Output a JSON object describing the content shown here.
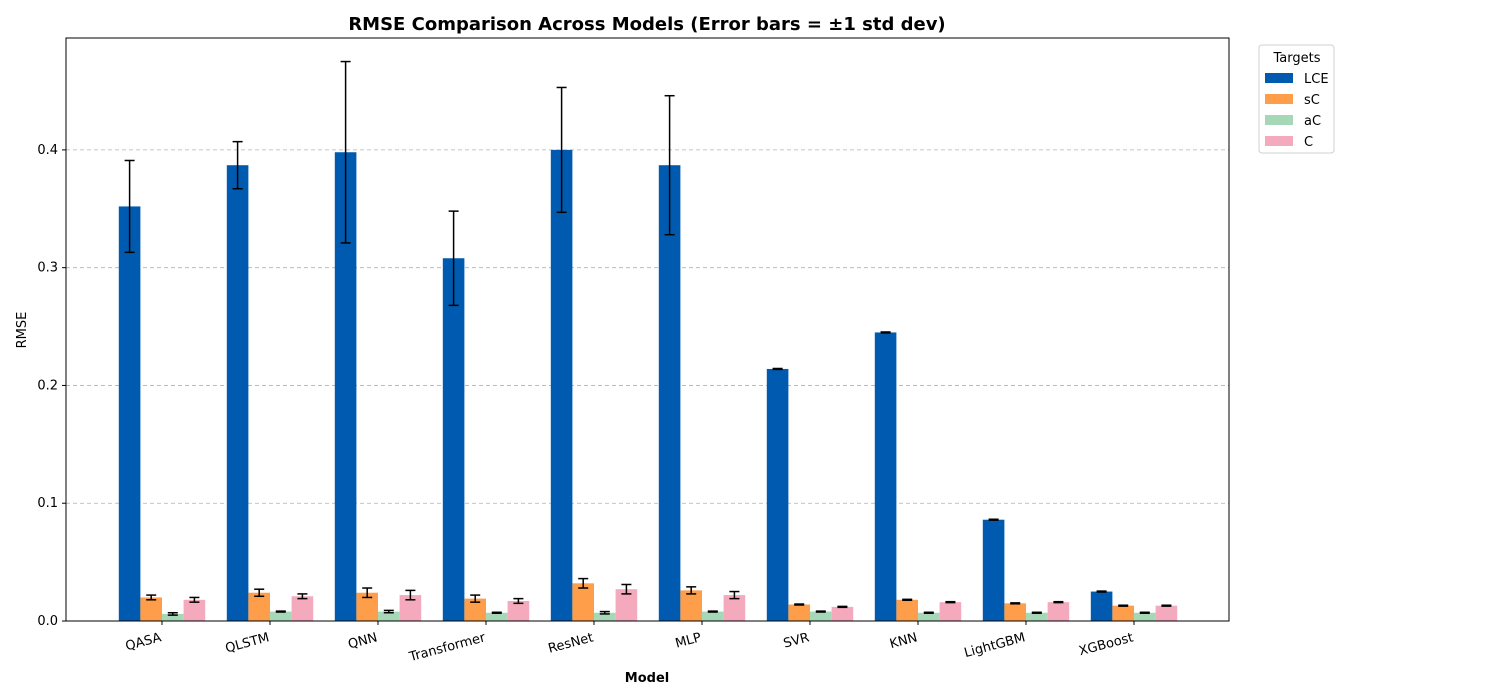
{
  "chart_data": {
    "type": "bar",
    "title": "RMSE Comparison Across Models (Error bars = ±1 std dev)",
    "xlabel": "Model",
    "ylabel": "RMSE",
    "ylim": [
      0,
      0.495
    ],
    "yticks": [
      0.0,
      0.1,
      0.2,
      0.3,
      0.4
    ],
    "ytick_labels": [
      "0.0",
      "0.1",
      "0.2",
      "0.3",
      "0.4"
    ],
    "grid": "y-dashed",
    "legend": {
      "title": "Targets",
      "placement": "outside-top-right"
    },
    "categories": [
      "QASA",
      "QLSTM",
      "QNN",
      "Transformer",
      "ResNet",
      "MLP",
      "SVR",
      "KNN",
      "LightGBM",
      "XGBoost"
    ],
    "series": [
      {
        "name": "LCE",
        "color": "#005bb0",
        "values": [
          0.352,
          0.387,
          0.398,
          0.308,
          0.4,
          0.387,
          0.214,
          0.245,
          0.086,
          0.025
        ],
        "errors": [
          0.039,
          0.02,
          0.077,
          0.04,
          0.053,
          0.059,
          0.0004,
          0.0004,
          0.0004,
          0.0004
        ]
      },
      {
        "name": "sC",
        "color": "#ff9e4a",
        "values": [
          0.02,
          0.024,
          0.024,
          0.019,
          0.032,
          0.026,
          0.014,
          0.018,
          0.015,
          0.013
        ],
        "errors": [
          0.002,
          0.003,
          0.004,
          0.003,
          0.004,
          0.003,
          0.0004,
          0.0004,
          0.0004,
          0.0004
        ]
      },
      {
        "name": "aC",
        "color": "#a6d8b8",
        "values": [
          0.006,
          0.008,
          0.008,
          0.007,
          0.007,
          0.008,
          0.008,
          0.007,
          0.007,
          0.007
        ],
        "errors": [
          0.001,
          0.0004,
          0.001,
          0.0004,
          0.001,
          0.0004,
          0.0004,
          0.0004,
          0.0004,
          0.0004
        ]
      },
      {
        "name": "C",
        "color": "#f5a9bc",
        "values": [
          0.018,
          0.021,
          0.022,
          0.017,
          0.027,
          0.022,
          0.012,
          0.016,
          0.016,
          0.013
        ],
        "errors": [
          0.002,
          0.002,
          0.004,
          0.002,
          0.004,
          0.003,
          0.0004,
          0.0004,
          0.0004,
          0.0004
        ]
      }
    ]
  }
}
